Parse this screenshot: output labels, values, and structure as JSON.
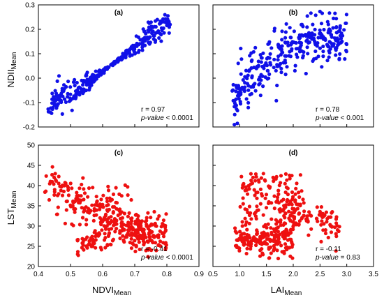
{
  "chart_data": [
    {
      "type": "scatter",
      "panel": "(a)",
      "color": "#1010e8",
      "xlim": [
        0.4,
        0.9
      ],
      "ylim": [
        -0.2,
        0.3
      ],
      "xticks": [],
      "yticks": [
        "-0.2",
        "-0.1",
        "0.0",
        "0.1",
        "0.2",
        "0.3"
      ],
      "stats": {
        "r": "r = 0.97",
        "p": "p-value < 0.0001"
      },
      "trend": {
        "kind": "linear_band",
        "x0": 0.43,
        "y0": -0.115,
        "x1": 0.81,
        "y1": 0.235,
        "n": 330,
        "spread": 0.024,
        "seed": 11,
        "curv": 0.05
      }
    },
    {
      "type": "scatter",
      "panel": "(b)",
      "color": "#1010e8",
      "xlim": [
        0.5,
        3.5
      ],
      "ylim": [
        -0.2,
        0.3
      ],
      "xticks": [],
      "yticks": [],
      "stats": {
        "r": "r = 0.78",
        "p": "p-value < 0.001"
      },
      "trend": {
        "kind": "curve_band",
        "x0": 0.85,
        "x1": 3.0,
        "ymin": -0.11,
        "ymax": 0.17,
        "n": 330,
        "spread": 0.05,
        "seed": 23
      }
    },
    {
      "type": "scatter",
      "panel": "(c)",
      "color": "#ee1010",
      "xlim": [
        0.4,
        0.9
      ],
      "ylim": [
        20,
        50
      ],
      "xticks": [
        "0.4",
        "0.5",
        "0.6",
        "0.7",
        "0.8",
        "0.9"
      ],
      "yticks": [
        "20",
        "25",
        "30",
        "35",
        "40",
        "45",
        "50"
      ],
      "stats": {
        "r": "r = -0.41",
        "p": "p-value < 0.0001"
      },
      "trend": {
        "kind": "triangle",
        "n": 420,
        "seed": 37
      }
    },
    {
      "type": "scatter",
      "panel": "(d)",
      "color": "#ee1010",
      "xlim": [
        0.5,
        3.5
      ],
      "ylim": [
        20,
        50
      ],
      "xticks": [
        "0.5",
        "1.0",
        "1.5",
        "2.0",
        "2.5",
        "3.0",
        "3.5"
      ],
      "yticks": [],
      "stats": {
        "r": "r = -0.11",
        "p": "p-value = 0.83"
      },
      "trend": {
        "kind": "blob",
        "n": 420,
        "seed": 53
      }
    }
  ],
  "axis_titles": {
    "y_top": {
      "main": "NDII",
      "sub": "Mean"
    },
    "y_bottom": {
      "main": "LST",
      "sub": "Mean"
    },
    "x_left": {
      "main": "NDVI",
      "sub": "Mean"
    },
    "x_right": {
      "main": "LAI",
      "sub": "Mean"
    }
  }
}
